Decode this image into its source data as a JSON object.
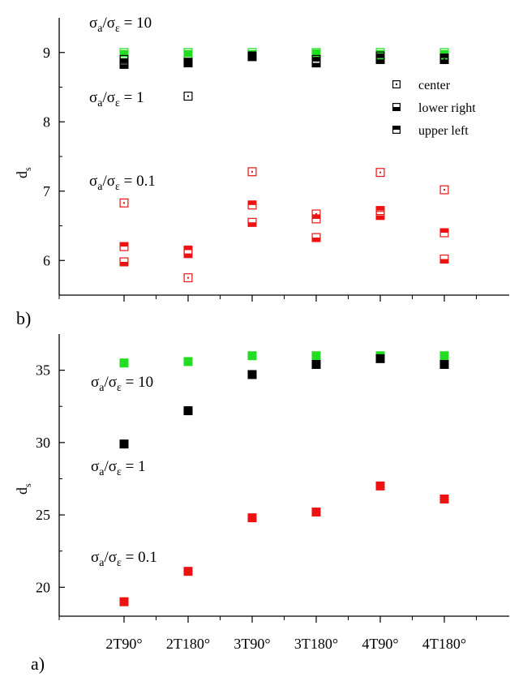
{
  "colors": {
    "green": "#22dd22",
    "black": "#000000",
    "red": "#ee1111",
    "axis": "#000000"
  },
  "chart_data": [
    {
      "panel": "b)",
      "type": "scatter",
      "categories": [
        "2T90°",
        "2T180°",
        "3T90°",
        "3T180°",
        "4T90°",
        "4T180°"
      ],
      "ylabel": "d",
      "ylabel_sub": "s",
      "ylim": [
        5.5,
        9.5
      ],
      "yticks": [
        6,
        7,
        8,
        9
      ],
      "grid": false,
      "legend": {
        "placement": "top-right",
        "entries": [
          {
            "label": "center",
            "marker": "center"
          },
          {
            "label": "lower right",
            "marker": "lower right"
          },
          {
            "label": "upper left",
            "marker": "upper left"
          }
        ]
      },
      "annotations": [
        {
          "text": "σa/σε = 10",
          "x": 0.5,
          "y": 9.4
        },
        {
          "text": "σa/σε = 1",
          "x": 0.5,
          "y": 8.35
        },
        {
          "text": "σa/σε = 0.1",
          "x": 0.5,
          "y": 7.15
        }
      ],
      "series": [
        {
          "group": "σa/σε = 10",
          "marker": "center",
          "color": "green",
          "values": [
            8.95,
            8.95,
            8.97,
            8.95,
            8.96,
            8.95
          ]
        },
        {
          "group": "σa/σε = 10",
          "marker": "lower right",
          "color": "green",
          "values": [
            9.0,
            9.0,
            9.0,
            9.0,
            9.0,
            9.0
          ]
        },
        {
          "group": "σa/σε = 10",
          "marker": "upper left",
          "color": "green",
          "values": [
            8.97,
            8.97,
            8.96,
            8.98,
            8.97,
            8.97
          ]
        },
        {
          "group": "σa/σε = 1",
          "marker": "center",
          "color": "black",
          "values": [
            8.9,
            8.37,
            8.95,
            8.9,
            8.95,
            8.9
          ]
        },
        {
          "group": "σa/σε = 1",
          "marker": "lower right",
          "color": "black",
          "values": [
            8.83,
            8.86,
            8.95,
            8.85,
            8.9,
            8.9
          ]
        },
        {
          "group": "σa/σε = 1",
          "marker": "upper left",
          "color": "black",
          "values": [
            8.85,
            8.85,
            8.94,
            8.87,
            8.92,
            8.92
          ]
        },
        {
          "group": "σa/σε = 0.1",
          "marker": "center",
          "color": "red",
          "values": [
            6.83,
            5.75,
            7.28,
            6.67,
            7.27,
            7.02
          ]
        },
        {
          "group": "σa/σε = 0.1",
          "marker": "lower right",
          "color": "red",
          "values": [
            5.98,
            6.1,
            6.55,
            6.33,
            6.65,
            6.02
          ]
        },
        {
          "group": "σa/σε = 0.1",
          "marker": "upper left",
          "color": "red",
          "values": [
            6.2,
            6.15,
            6.8,
            6.6,
            6.72,
            6.4
          ]
        }
      ]
    },
    {
      "panel": "a)",
      "type": "scatter",
      "categories": [
        "2T90°",
        "2T180°",
        "3T90°",
        "3T180°",
        "4T90°",
        "4T180°"
      ],
      "ylabel": "d",
      "ylabel_sub": "s",
      "ylim": [
        18,
        37.5
      ],
      "yticks": [
        20,
        25,
        30,
        35
      ],
      "grid": false,
      "annotations": [
        {
          "text": "σa/σε = 10",
          "x": 0.5,
          "y": 33.5
        },
        {
          "text": "σa/σε = 1",
          "x": 0.5,
          "y": 28.5
        },
        {
          "text": "σa/σε = 0.1",
          "x": 0.5,
          "y": 22.0
        }
      ],
      "series": [
        {
          "group": "σa/σε = 10",
          "color": "green",
          "values": [
            35.5,
            35.6,
            36.0,
            36.0,
            36.0,
            36.0
          ]
        },
        {
          "group": "σa/σε = 1",
          "color": "black",
          "values": [
            29.9,
            32.2,
            34.7,
            35.4,
            35.8,
            35.4
          ]
        },
        {
          "group": "σa/σε = 0.1",
          "color": "red",
          "values": [
            19.0,
            21.1,
            24.8,
            25.2,
            27.0,
            26.1
          ]
        }
      ]
    }
  ]
}
